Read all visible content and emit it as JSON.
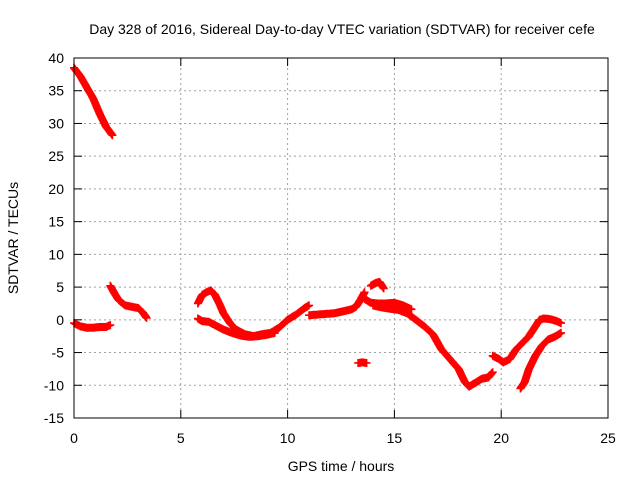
{
  "chart_data": {
    "type": "scatter",
    "title": "Day 328 of 2016, Sidereal Day-to-day VTEC variation (SDTVAR) for receiver cefe",
    "xlabel": "GPS time / hours",
    "ylabel": "SDTVAR / TECUs",
    "xlim": [
      0,
      25
    ],
    "ylim": [
      -15,
      40
    ],
    "xticks": [
      0,
      5,
      10,
      15,
      20,
      25
    ],
    "yticks": [
      -15,
      -10,
      -5,
      0,
      5,
      10,
      15,
      20,
      25,
      30,
      35,
      40
    ],
    "grid": true,
    "marker": "plus",
    "series": [
      {
        "name": "SDTVAR",
        "color": "#ff0000",
        "segments": [
          {
            "x": [
              0.0,
              0.3,
              0.6,
              0.9,
              1.2,
              1.5,
              1.8
            ],
            "y": [
              38.5,
              37.2,
              35.5,
              33.8,
              31.5,
              29.5,
              28.2
            ]
          },
          {
            "x": [
              0.0,
              0.3,
              0.6,
              0.9,
              1.2,
              1.5,
              1.7
            ],
            "y": [
              -0.5,
              -1.0,
              -1.2,
              -1.2,
              -1.1,
              -1.1,
              -0.8
            ]
          },
          {
            "x": [
              1.7,
              1.9,
              2.1,
              2.4,
              2.7,
              3.0,
              3.2,
              3.4
            ],
            "y": [
              5.2,
              4.0,
              3.0,
              2.2,
              2.0,
              1.8,
              1.2,
              0.3
            ]
          },
          {
            "x": [
              5.8,
              6.0,
              6.2,
              6.4,
              6.6,
              6.8,
              7.0,
              7.3,
              7.6,
              8.0,
              8.4,
              8.8,
              9.2,
              9.6,
              10.0,
              10.4,
              10.8,
              11.0
            ],
            "y": [
              2.5,
              3.8,
              4.2,
              4.5,
              3.8,
              2.5,
              1.0,
              -0.5,
              -1.5,
              -2.2,
              -2.5,
              -2.2,
              -2.0,
              -1.2,
              0.0,
              0.8,
              1.8,
              2.2
            ]
          },
          {
            "x": [
              5.8,
              6.0,
              6.3,
              6.6,
              7.0,
              7.4,
              7.8,
              8.2,
              8.6,
              9.0,
              9.4
            ],
            "y": [
              0.2,
              -0.2,
              -0.3,
              -0.8,
              -1.5,
              -2.0,
              -2.4,
              -2.6,
              -2.5,
              -2.3,
              -2.0
            ]
          },
          {
            "x": [
              11.0,
              11.4,
              11.8,
              12.2,
              12.6,
              13.0,
              13.2,
              13.4,
              13.6
            ],
            "y": [
              0.7,
              0.8,
              0.9,
              1.0,
              1.3,
              1.6,
              2.0,
              3.0,
              4.2
            ]
          },
          {
            "x": [
              13.3,
              13.5,
              13.7
            ],
            "y": [
              -6.6,
              -6.5,
              -6.6
            ]
          },
          {
            "x": [
              13.9,
              14.1,
              14.3,
              14.5
            ],
            "y": [
              5.2,
              5.6,
              5.8,
              4.8
            ]
          },
          {
            "x": [
              13.6,
              13.9,
              14.2,
              14.6,
              15.0,
              15.4,
              15.8
            ],
            "y": [
              3.2,
              2.6,
              2.5,
              2.5,
              2.6,
              2.2,
              1.6
            ]
          },
          {
            "x": [
              14.0,
              14.4,
              14.8,
              15.2,
              15.6,
              16.0,
              16.4,
              16.8,
              17.2,
              17.6,
              18.0,
              18.3,
              18.5,
              18.8,
              19.1,
              19.4,
              19.6
            ],
            "y": [
              2.2,
              1.9,
              1.7,
              1.5,
              1.0,
              0.0,
              -1.0,
              -2.2,
              -4.5,
              -6.0,
              -7.5,
              -9.5,
              -10.2,
              -9.6,
              -9.0,
              -8.8,
              -8.0
            ]
          },
          {
            "x": [
              19.6,
              19.9,
              20.1,
              20.4,
              20.7,
              21.0,
              21.3,
              21.6,
              21.8,
              22.0,
              22.3,
              22.6,
              22.8
            ],
            "y": [
              -5.5,
              -6.0,
              -6.5,
              -6.0,
              -4.5,
              -3.5,
              -2.5,
              -1.0,
              0.0,
              0.2,
              0.1,
              -0.2,
              -0.5
            ]
          },
          {
            "x": [
              20.9,
              21.1,
              21.3,
              21.6,
              21.9,
              22.2,
              22.5,
              22.8
            ],
            "y": [
              -10.5,
              -9.5,
              -7.5,
              -5.5,
              -4.0,
              -3.0,
              -2.6,
              -2.0
            ]
          }
        ]
      }
    ]
  }
}
